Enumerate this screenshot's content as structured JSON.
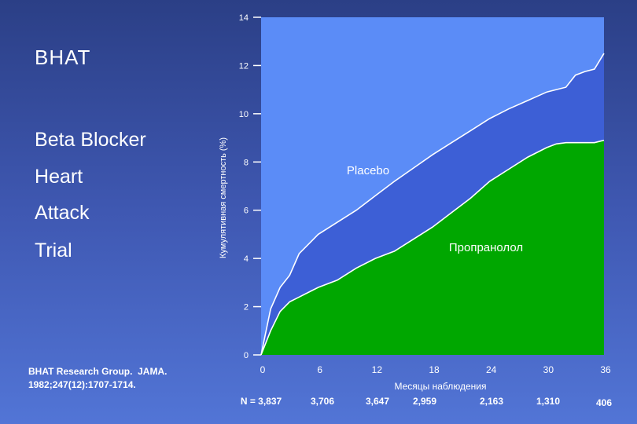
{
  "colors": {
    "placebo_area": "#3d5fd6",
    "propranolol_area": "#00a700",
    "plot_background": "#5b8cf7",
    "line": "#ffffff"
  },
  "slide": {
    "title": "BHAT",
    "acronym": [
      {
        "first": "B",
        "rest": "eta Blocker"
      },
      {
        "first": "H",
        "rest": "eart"
      },
      {
        "first": "A",
        "rest": "ttack"
      },
      {
        "first": "T",
        "rest": "rial"
      }
    ],
    "citation_line1": "BHAT Research Group.  JAMA.",
    "citation_line2": "1982;247(12):1707-1714."
  },
  "chart_data": {
    "type": "area",
    "title": "",
    "xlabel": "Месяцы наблюдения",
    "ylabel": "Кумулятивная смертность (%)",
    "xlim": [
      0,
      36
    ],
    "ylim": [
      0,
      14
    ],
    "xticks": [
      0,
      6,
      12,
      18,
      24,
      30,
      36
    ],
    "yticks": [
      0,
      2,
      4,
      6,
      8,
      10,
      12,
      14
    ],
    "grid": false,
    "series": [
      {
        "name": "Placebo",
        "x": [
          0,
          1,
          2,
          3,
          4,
          5,
          6,
          8,
          10,
          12,
          14,
          16,
          18,
          20,
          22,
          24,
          26,
          28,
          30,
          31,
          32,
          33,
          34,
          35,
          36
        ],
        "values": [
          0,
          1.9,
          2.8,
          3.3,
          4.2,
          4.6,
          5.0,
          5.5,
          6.0,
          6.6,
          7.2,
          7.75,
          8.3,
          8.8,
          9.3,
          9.8,
          10.2,
          10.55,
          10.9,
          11.0,
          11.1,
          11.6,
          11.75,
          11.85,
          12.5
        ]
      },
      {
        "name": "Пропранолол",
        "x": [
          0,
          1,
          2,
          3,
          4,
          5,
          6,
          8,
          10,
          12,
          14,
          16,
          18,
          20,
          22,
          24,
          26,
          28,
          30,
          31,
          32,
          33,
          34,
          35,
          36
        ],
        "values": [
          0,
          1.0,
          1.8,
          2.2,
          2.4,
          2.6,
          2.8,
          3.1,
          3.6,
          4.0,
          4.3,
          4.8,
          5.3,
          5.9,
          6.5,
          7.2,
          7.7,
          8.2,
          8.6,
          8.75,
          8.8,
          8.8,
          8.8,
          8.8,
          8.9
        ]
      }
    ],
    "n_at_risk": {
      "label": "N = ",
      "x": [
        0,
        6,
        12,
        18,
        24,
        30,
        36
      ],
      "values": [
        "3,837",
        "3,706",
        "3,647",
        "2,959",
        "2,163",
        "1,310",
        "406"
      ]
    }
  }
}
